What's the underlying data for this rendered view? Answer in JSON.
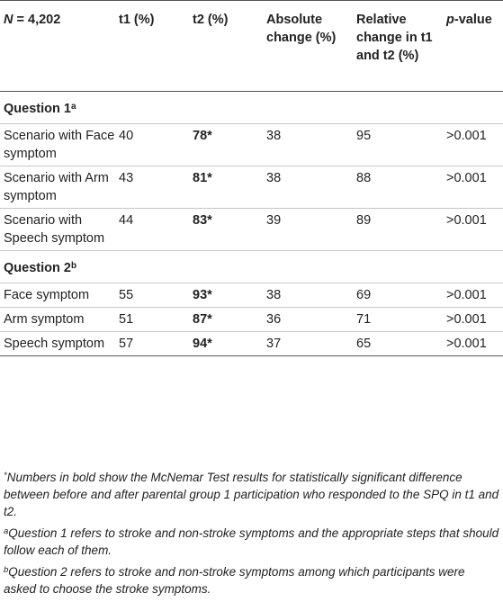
{
  "header": {
    "n_label": "N",
    "n_value": "= 4,202",
    "t1": "t1 (%)",
    "t2": "t2 (%)",
    "absolute": "Absolute change (%)",
    "relative": "Relative change in t1 and t2 (%)",
    "p_italic": "p",
    "p_rest": "-value"
  },
  "sections": [
    {
      "title": "Question 1",
      "sup": "a",
      "rows": [
        {
          "label": "Scenario with Face symptom",
          "t1": "40",
          "t2": "78*",
          "abs": "38",
          "rel": "95",
          "p": ">0.001"
        },
        {
          "label": "Scenario with Arm symptom",
          "t1": "43",
          "t2": "81*",
          "abs": "38",
          "rel": "88",
          "p": ">0.001"
        },
        {
          "label": "Scenario with Speech symptom",
          "t1": "44",
          "t2": "83*",
          "abs": "39",
          "rel": "89",
          "p": ">0.001"
        }
      ]
    },
    {
      "title": "Question 2",
      "sup": "b",
      "rows": [
        {
          "label": "Face symptom",
          "t1": "55",
          "t2": "93*",
          "abs": "38",
          "rel": "69",
          "p": ">0.001"
        },
        {
          "label": "Arm symptom",
          "t1": "51",
          "t2": "87*",
          "abs": "36",
          "rel": "71",
          "p": ">0.001"
        },
        {
          "label": "Speech symptom",
          "t1": "57",
          "t2": "94*",
          "abs": "37",
          "rel": "65",
          "p": ">0.001"
        }
      ]
    }
  ],
  "footnotes": {
    "star_mark": "*",
    "star_text": "Numbers in bold show the McNemar Test results for statistically significant difference between before and after parental group 1 participation who responded to the SPQ in t1 and t2.",
    "a_mark": "a",
    "a_text": "Question 1 refers to stroke and non-stroke symptoms and the appropriate steps that should follow each of them.",
    "b_mark": "b",
    "b_text": "Question 2 refers to stroke and non-stroke symptoms among which participants were asked to choose the stroke symptoms."
  }
}
